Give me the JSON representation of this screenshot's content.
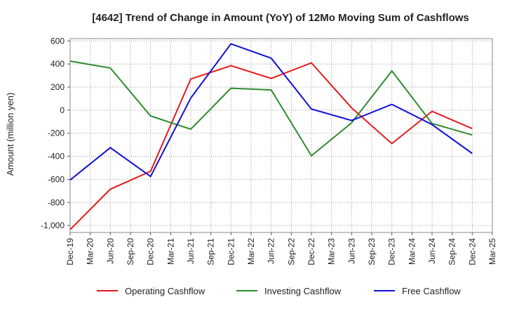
{
  "chart_data": {
    "type": "line",
    "title": "[4642]  Trend of Change in Amount (YoY) of 12Mo Moving Sum of Cashflows",
    "xlabel": "",
    "ylabel": "Amount (million yen)",
    "ylim": [
      -1060,
      620
    ],
    "yticks": [
      600,
      400,
      200,
      0,
      -200,
      -400,
      -600,
      -800,
      -1000
    ],
    "ytick_labels": [
      "600",
      "400",
      "200",
      "0",
      "-200",
      "-400",
      "-600",
      "-800",
      "-1,000"
    ],
    "x_tick_labels": [
      "Dec-19",
      "Mar-20",
      "Jun-20",
      "Sep-20",
      "Dec-20",
      "Mar-21",
      "Jun-21",
      "Sep-21",
      "Dec-21",
      "Mar-22",
      "Jun-22",
      "Sep-22",
      "Dec-22",
      "Mar-23",
      "Jun-23",
      "Sep-23",
      "Dec-23",
      "Mar-24",
      "Jun-24",
      "Sep-24",
      "Dec-24",
      "Mar-25"
    ],
    "categories": [
      "Dec-19",
      "Jun-20",
      "Dec-20",
      "Jun-21",
      "Dec-21",
      "Jun-22",
      "Dec-22",
      "Jun-23",
      "Dec-23",
      "Jun-24",
      "Dec-24"
    ],
    "grid": true,
    "legend_position": "bottom",
    "series": [
      {
        "name": "Operating Cashflow",
        "color": "#e31a1c",
        "values": [
          -1035,
          -685,
          -530,
          270,
          385,
          275,
          410,
          20,
          -290,
          -10,
          -160
        ]
      },
      {
        "name": "Investing Cashflow",
        "color": "#2e8b2e",
        "values": [
          425,
          365,
          -50,
          -165,
          190,
          175,
          -395,
          -110,
          340,
          -115,
          -215
        ]
      },
      {
        "name": "Free Cashflow",
        "color": "#1010d8",
        "values": [
          -605,
          -325,
          -575,
          105,
          575,
          450,
          10,
          -90,
          50,
          -125,
          -375
        ]
      }
    ]
  }
}
